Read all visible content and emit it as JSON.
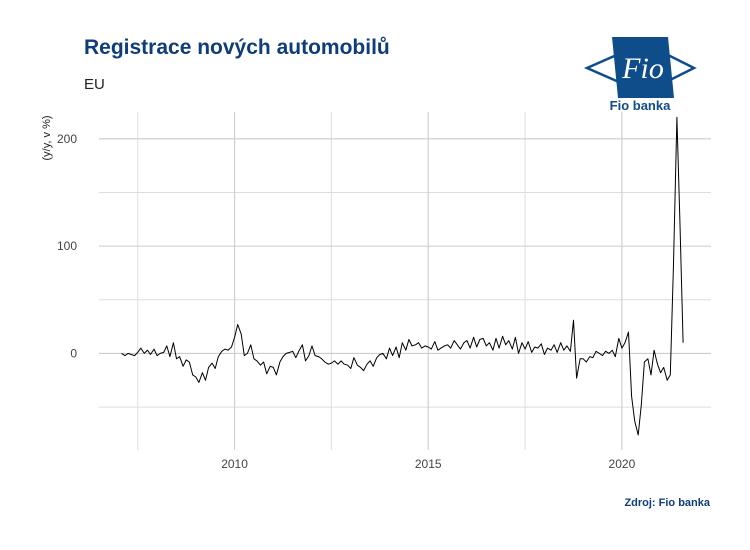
{
  "header": {
    "title": "Registrace nových automobilů",
    "subtitle": "EU"
  },
  "logo": {
    "mark": "Fio",
    "name": "Fio banka",
    "icon": "fio-banka-logo-icon",
    "color": "#0f4c8a"
  },
  "footer": {
    "caption": "Zdroj: Fio banka"
  },
  "chart_data": {
    "type": "line",
    "title": "Registrace nových automobilů",
    "subtitle": "EU",
    "xlabel": "",
    "ylabel": "(y/y, v %)",
    "xlim": [
      2006.5,
      2022.3
    ],
    "ylim": [
      -90,
      225
    ],
    "x_ticks": [
      2010,
      2015,
      2020
    ],
    "y_ticks": [
      0,
      100,
      200
    ],
    "grid": true,
    "legend": "none",
    "line_color": "#000000",
    "series": [
      {
        "values": [
          [
            2007.08,
            0
          ],
          [
            2007.17,
            -2
          ],
          [
            2007.25,
            0
          ],
          [
            2007.33,
            -1
          ],
          [
            2007.42,
            -2
          ],
          [
            2007.5,
            1
          ],
          [
            2007.58,
            5
          ],
          [
            2007.67,
            0
          ],
          [
            2007.75,
            3
          ],
          [
            2007.83,
            -1
          ],
          [
            2007.92,
            4
          ],
          [
            2008.0,
            -2
          ],
          [
            2008.08,
            0
          ],
          [
            2008.17,
            1
          ],
          [
            2008.25,
            7
          ],
          [
            2008.33,
            -3
          ],
          [
            2008.42,
            10
          ],
          [
            2008.5,
            -5
          ],
          [
            2008.58,
            -3
          ],
          [
            2008.67,
            -12
          ],
          [
            2008.75,
            -6
          ],
          [
            2008.83,
            -8
          ],
          [
            2008.92,
            -20
          ],
          [
            2009.0,
            -22
          ],
          [
            2009.08,
            -27
          ],
          [
            2009.17,
            -18
          ],
          [
            2009.25,
            -25
          ],
          [
            2009.33,
            -13
          ],
          [
            2009.42,
            -9
          ],
          [
            2009.5,
            -14
          ],
          [
            2009.58,
            -3
          ],
          [
            2009.67,
            2
          ],
          [
            2009.75,
            4
          ],
          [
            2009.83,
            3
          ],
          [
            2009.92,
            6
          ],
          [
            2010.0,
            15
          ],
          [
            2010.08,
            27
          ],
          [
            2010.17,
            18
          ],
          [
            2010.25,
            -2
          ],
          [
            2010.33,
            0
          ],
          [
            2010.42,
            8
          ],
          [
            2010.5,
            -5
          ],
          [
            2010.58,
            -7
          ],
          [
            2010.67,
            -11
          ],
          [
            2010.75,
            -8
          ],
          [
            2010.83,
            -19
          ],
          [
            2010.92,
            -12
          ],
          [
            2011.0,
            -13
          ],
          [
            2011.08,
            -20
          ],
          [
            2011.17,
            -8
          ],
          [
            2011.25,
            -3
          ],
          [
            2011.33,
            0
          ],
          [
            2011.42,
            1
          ],
          [
            2011.5,
            2
          ],
          [
            2011.58,
            -4
          ],
          [
            2011.67,
            3
          ],
          [
            2011.75,
            8
          ],
          [
            2011.83,
            -7
          ],
          [
            2011.92,
            -2
          ],
          [
            2012.0,
            7
          ],
          [
            2012.08,
            -2
          ],
          [
            2012.17,
            -3
          ],
          [
            2012.25,
            -5
          ],
          [
            2012.33,
            -8
          ],
          [
            2012.42,
            -10
          ],
          [
            2012.5,
            -9
          ],
          [
            2012.58,
            -7
          ],
          [
            2012.67,
            -10
          ],
          [
            2012.75,
            -7
          ],
          [
            2012.83,
            -10
          ],
          [
            2012.92,
            -11
          ],
          [
            2013.0,
            -14
          ],
          [
            2013.08,
            -4
          ],
          [
            2013.17,
            -11
          ],
          [
            2013.25,
            -13
          ],
          [
            2013.33,
            -16
          ],
          [
            2013.42,
            -10
          ],
          [
            2013.5,
            -7
          ],
          [
            2013.58,
            -12
          ],
          [
            2013.67,
            -4
          ],
          [
            2013.75,
            -1
          ],
          [
            2013.83,
            0
          ],
          [
            2013.92,
            -5
          ],
          [
            2014.0,
            5
          ],
          [
            2014.08,
            -2
          ],
          [
            2014.17,
            6
          ],
          [
            2014.25,
            -4
          ],
          [
            2014.33,
            10
          ],
          [
            2014.42,
            3
          ],
          [
            2014.5,
            13
          ],
          [
            2014.58,
            7
          ],
          [
            2014.67,
            8
          ],
          [
            2014.75,
            10
          ],
          [
            2014.83,
            5
          ],
          [
            2014.92,
            7
          ],
          [
            2015.0,
            6
          ],
          [
            2015.08,
            4
          ],
          [
            2015.17,
            11
          ],
          [
            2015.25,
            3
          ],
          [
            2015.33,
            5
          ],
          [
            2015.42,
            7
          ],
          [
            2015.5,
            8
          ],
          [
            2015.58,
            5
          ],
          [
            2015.67,
            12
          ],
          [
            2015.75,
            8
          ],
          [
            2015.83,
            4
          ],
          [
            2015.92,
            10
          ],
          [
            2016.0,
            12
          ],
          [
            2016.08,
            5
          ],
          [
            2016.17,
            15
          ],
          [
            2016.25,
            6
          ],
          [
            2016.33,
            13
          ],
          [
            2016.42,
            14
          ],
          [
            2016.5,
            7
          ],
          [
            2016.58,
            10
          ],
          [
            2016.67,
            3
          ],
          [
            2016.75,
            14
          ],
          [
            2016.83,
            5
          ],
          [
            2016.92,
            16
          ],
          [
            2017.0,
            8
          ],
          [
            2017.08,
            12
          ],
          [
            2017.17,
            4
          ],
          [
            2017.25,
            15
          ],
          [
            2017.33,
            0
          ],
          [
            2017.42,
            10
          ],
          [
            2017.5,
            4
          ],
          [
            2017.58,
            11
          ],
          [
            2017.67,
            1
          ],
          [
            2017.75,
            6
          ],
          [
            2017.83,
            5
          ],
          [
            2017.92,
            9
          ],
          [
            2018.0,
            -1
          ],
          [
            2018.08,
            5
          ],
          [
            2018.17,
            3
          ],
          [
            2018.25,
            8
          ],
          [
            2018.33,
            1
          ],
          [
            2018.42,
            10
          ],
          [
            2018.5,
            3
          ],
          [
            2018.58,
            7
          ],
          [
            2018.67,
            2
          ],
          [
            2018.75,
            31
          ],
          [
            2018.83,
            -23
          ],
          [
            2018.92,
            -5
          ],
          [
            2019.0,
            -5
          ],
          [
            2019.08,
            -8
          ],
          [
            2019.17,
            -3
          ],
          [
            2019.25,
            -4
          ],
          [
            2019.33,
            2
          ],
          [
            2019.42,
            0
          ],
          [
            2019.5,
            -2
          ],
          [
            2019.58,
            2
          ],
          [
            2019.67,
            0
          ],
          [
            2019.75,
            3
          ],
          [
            2019.83,
            -3
          ],
          [
            2019.92,
            14
          ],
          [
            2020.0,
            5
          ],
          [
            2020.08,
            10
          ],
          [
            2020.17,
            20
          ],
          [
            2020.25,
            -40
          ],
          [
            2020.33,
            -63
          ],
          [
            2020.42,
            -76
          ],
          [
            2020.5,
            -48
          ],
          [
            2020.58,
            -8
          ],
          [
            2020.67,
            -5
          ],
          [
            2020.75,
            -20
          ],
          [
            2020.83,
            3
          ],
          [
            2020.92,
            -10
          ],
          [
            2021.0,
            -18
          ],
          [
            2021.08,
            -13
          ],
          [
            2021.17,
            -25
          ],
          [
            2021.25,
            -20
          ],
          [
            2021.33,
            80
          ],
          [
            2021.42,
            220
          ],
          [
            2021.5,
            120
          ],
          [
            2021.58,
            10
          ]
        ]
      }
    ]
  }
}
